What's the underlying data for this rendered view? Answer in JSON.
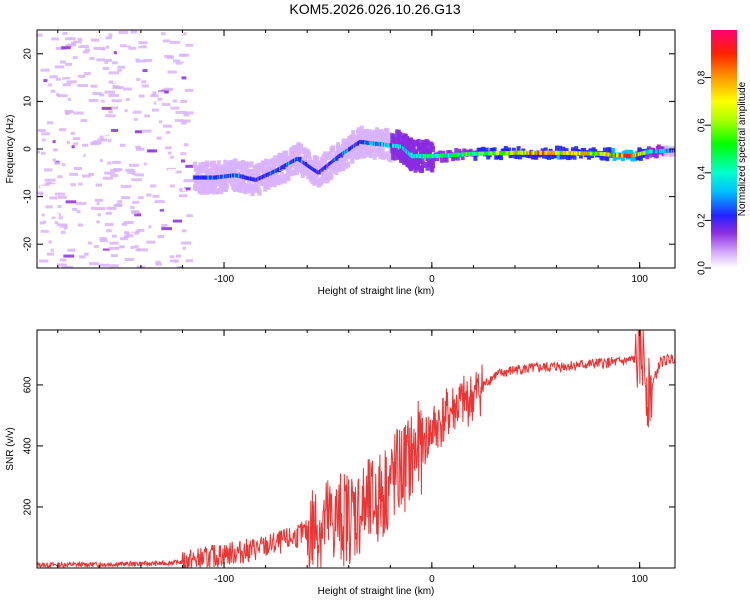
{
  "title": "KOM5.2026.026.10.26.G13",
  "chart_data": [
    {
      "type": "heatmap",
      "xlabel": "Height of straight line (km)",
      "ylabel": "Frequency (Hz)",
      "xlim": [
        -190,
        117
      ],
      "ylim": [
        -25,
        25
      ],
      "xticks": [
        -100,
        0,
        100
      ],
      "yticks": [
        -20,
        -10,
        0,
        10,
        20
      ],
      "colorbar": {
        "label": "Normalized spectral amplitude",
        "range": [
          0,
          1
        ],
        "ticks": [
          "0.0",
          "0.2",
          "0.4",
          "0.6",
          "0.8"
        ]
      },
      "ridge": [
        {
          "x": -115,
          "f": -6.0,
          "a": 0.25
        },
        {
          "x": -105,
          "f": -6.0,
          "a": 0.35
        },
        {
          "x": -95,
          "f": -5.5,
          "a": 0.3
        },
        {
          "x": -85,
          "f": -6.5,
          "a": 0.25
        },
        {
          "x": -75,
          "f": -4.5,
          "a": 0.3
        },
        {
          "x": -65,
          "f": -2.0,
          "a": 0.3
        },
        {
          "x": -55,
          "f": -5.0,
          "a": 0.25
        },
        {
          "x": -45,
          "f": -1.5,
          "a": 0.3
        },
        {
          "x": -35,
          "f": 1.5,
          "a": 0.3
        },
        {
          "x": -25,
          "f": 1.0,
          "a": 0.35
        },
        {
          "x": -15,
          "f": 0.5,
          "a": 0.4
        },
        {
          "x": -10,
          "f": -1.5,
          "a": 0.45
        },
        {
          "x": 0,
          "f": -1.5,
          "a": 0.5
        },
        {
          "x": 20,
          "f": -1.0,
          "a": 0.55
        },
        {
          "x": 40,
          "f": -0.8,
          "a": 0.75
        },
        {
          "x": 60,
          "f": -0.8,
          "a": 0.8
        },
        {
          "x": 80,
          "f": -1.0,
          "a": 0.7
        },
        {
          "x": 95,
          "f": -1.5,
          "a": 0.95
        },
        {
          "x": 105,
          "f": -0.5,
          "a": 0.4
        },
        {
          "x": 117,
          "f": -0.3,
          "a": 0.35
        }
      ]
    },
    {
      "type": "line",
      "xlabel": "Height of straight line (km)",
      "ylabel": "SNR (v/v)",
      "xlim": [
        -190,
        117
      ],
      "ylim": [
        0,
        780
      ],
      "xticks": [
        -100,
        0,
        100
      ],
      "yticks": [
        200,
        400,
        600
      ],
      "series": [
        {
          "name": "SNR",
          "color": "#ee3333",
          "x": [
            -190,
            -160,
            -130,
            -120,
            -110,
            -100,
            -90,
            -80,
            -70,
            -60,
            -50,
            -40,
            -30,
            -25,
            -20,
            -15,
            -10,
            -5,
            0,
            10,
            20,
            25,
            30,
            40,
            50,
            60,
            70,
            80,
            90,
            95,
            100,
            102,
            104,
            110,
            117
          ],
          "y": [
            10,
            12,
            15,
            20,
            30,
            45,
            55,
            70,
            90,
            120,
            150,
            170,
            200,
            230,
            280,
            320,
            360,
            400,
            450,
            520,
            560,
            600,
            630,
            650,
            655,
            660,
            665,
            670,
            675,
            680,
            690,
            700,
            560,
            675,
            690
          ]
        }
      ]
    }
  ]
}
